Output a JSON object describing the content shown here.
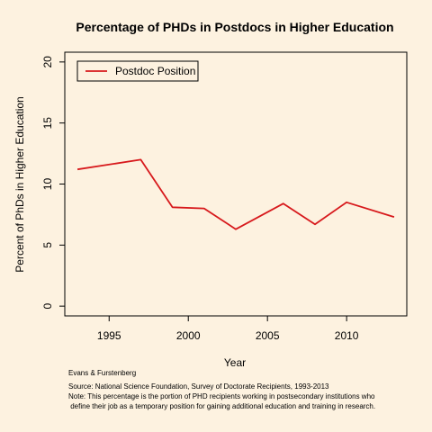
{
  "chart_data": {
    "type": "line",
    "title": "Percentage of PHDs in Postdocs in Higher Education",
    "xlabel": "Year",
    "ylabel": "Percent of PhDs in Higher Education",
    "xlim": [
      1992.2,
      2013.8
    ],
    "ylim": [
      -0.8,
      20.8
    ],
    "x_ticks": [
      1995,
      2000,
      2005,
      2010
    ],
    "y_ticks": [
      0,
      5,
      10,
      15,
      20
    ],
    "legend_position": "top-left",
    "grid": false,
    "series": [
      {
        "name": "Postdoc Position",
        "color": "#d7191c",
        "x": [
          1993,
          1997,
          1999,
          2001,
          2003,
          2006,
          2008,
          2010,
          2013
        ],
        "y": [
          11.2,
          12.0,
          8.1,
          8.0,
          6.3,
          8.4,
          6.7,
          8.5,
          7.3
        ]
      }
    ]
  },
  "notes": {
    "credit": "Evans & Furstenberg",
    "source": "Source: National Science Foundation, Survey of Doctorate Recipients, 1993-2013",
    "note_line1": "Note: This percentage is the portion of PHD recipients working in postsecondary institutions who",
    "note_line2": " define their job as a temporary position for gaining additional education and training in research."
  }
}
